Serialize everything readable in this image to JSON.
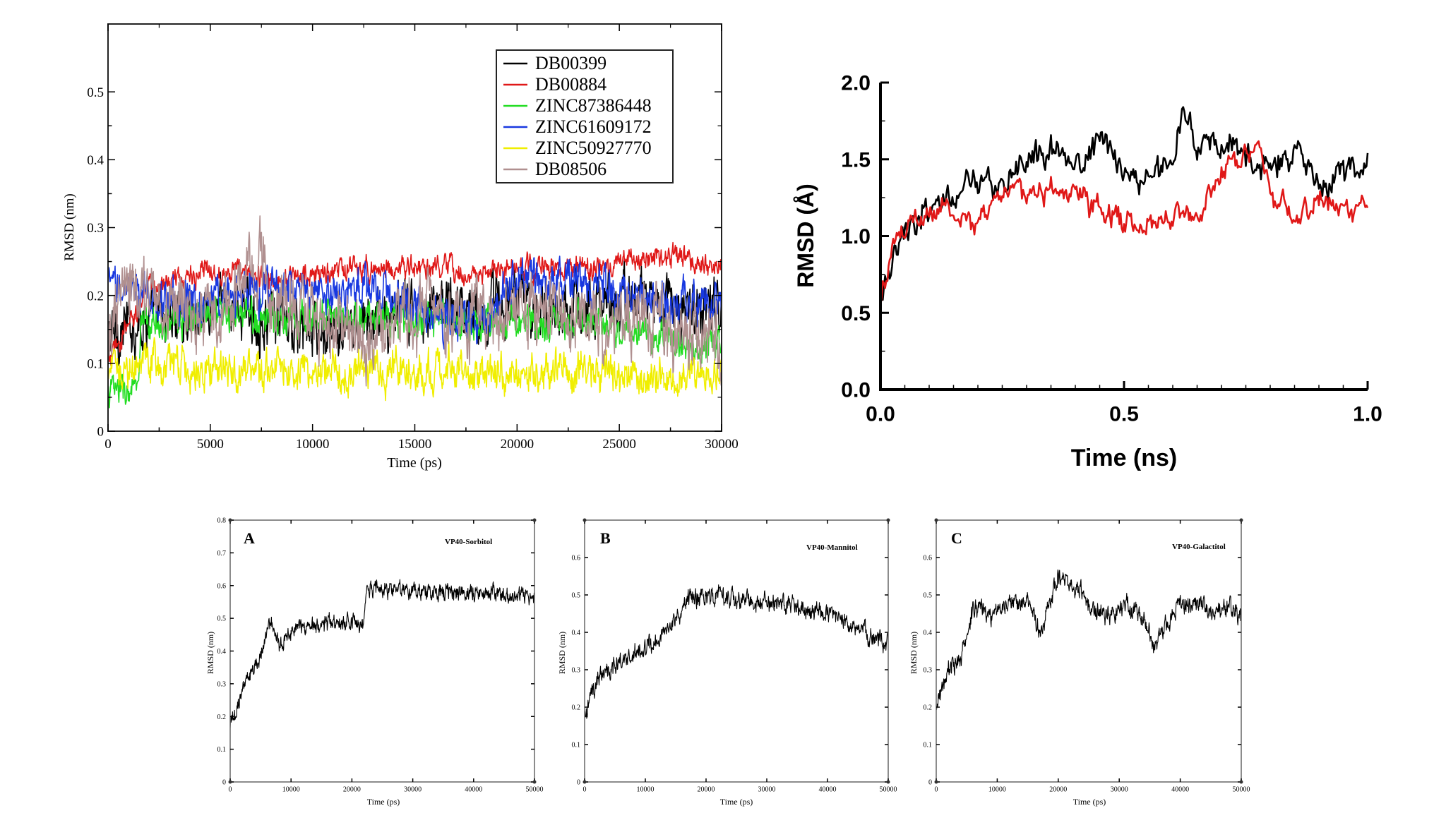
{
  "chart_data": [
    {
      "id": "p1",
      "type": "line",
      "title": "",
      "xlabel": "Time (ps)",
      "ylabel": "RMSD (nm)",
      "xlim": [
        0,
        30000
      ],
      "ylim": [
        0,
        0.6
      ],
      "xticks": [
        0,
        5000,
        10000,
        15000,
        20000,
        25000,
        30000
      ],
      "yticks": [
        0,
        0.1,
        0.2,
        0.3,
        0.4,
        0.5
      ],
      "xtick_labels": [
        "0",
        "5000",
        "10000",
        "15000",
        "20000",
        "25000",
        "30000"
      ],
      "ytick_labels": [
        "0",
        "0.1",
        "0.2",
        "0.3",
        "0.4",
        "0.5"
      ],
      "legend_position": "top-right",
      "series": [
        {
          "name": "DB00399",
          "color": "#000000",
          "x": [
            0,
            2000,
            4000,
            6000,
            8000,
            10000,
            12000,
            14000,
            16000,
            18000,
            20000,
            22000,
            24000,
            26000,
            28000,
            30000
          ],
          "values": [
            0.14,
            0.17,
            0.17,
            0.19,
            0.16,
            0.14,
            0.15,
            0.17,
            0.19,
            0.18,
            0.19,
            0.19,
            0.18,
            0.2,
            0.18,
            0.18
          ],
          "noise": 0.03
        },
        {
          "name": "DB00884",
          "color": "#e01818",
          "x": [
            0,
            2000,
            4000,
            6000,
            8000,
            10000,
            12000,
            14000,
            16000,
            18000,
            20000,
            22000,
            24000,
            26000,
            28000,
            30000
          ],
          "values": [
            0.1,
            0.21,
            0.23,
            0.24,
            0.22,
            0.23,
            0.24,
            0.24,
            0.24,
            0.23,
            0.24,
            0.24,
            0.24,
            0.25,
            0.26,
            0.24
          ],
          "noise": 0.012
        },
        {
          "name": "ZINC87386448",
          "color": "#22dd22",
          "x": [
            0,
            1500,
            1600,
            4000,
            8000,
            12000,
            16000,
            20000,
            24000,
            28000,
            30000
          ],
          "values": [
            0.06,
            0.06,
            0.15,
            0.17,
            0.17,
            0.17,
            0.16,
            0.16,
            0.16,
            0.13,
            0.12
          ],
          "noise": 0.018
        },
        {
          "name": "ZINC61609172",
          "color": "#1838e0",
          "x": [
            0,
            2000,
            4000,
            6000,
            8000,
            10000,
            12000,
            14000,
            16000,
            18000,
            20000,
            22000,
            24000,
            26000,
            28000,
            30000
          ],
          "values": [
            0.21,
            0.2,
            0.19,
            0.2,
            0.21,
            0.2,
            0.21,
            0.2,
            0.17,
            0.16,
            0.23,
            0.22,
            0.21,
            0.2,
            0.19,
            0.19
          ],
          "noise": 0.022
        },
        {
          "name": "ZINC50927770",
          "color": "#f0ee00",
          "x": [
            0,
            2000,
            4000,
            6000,
            8000,
            10000,
            12000,
            14000,
            16000,
            18000,
            20000,
            22000,
            24000,
            26000,
            28000,
            30000
          ],
          "values": [
            0.09,
            0.1,
            0.09,
            0.09,
            0.09,
            0.09,
            0.09,
            0.09,
            0.09,
            0.09,
            0.09,
            0.09,
            0.09,
            0.08,
            0.08,
            0.08
          ],
          "noise": 0.02
        },
        {
          "name": "DB08506",
          "color": "#b09090",
          "x": [
            0,
            1000,
            2000,
            4000,
            6000,
            7500,
            8000,
            10000,
            12000,
            14000,
            16000,
            18000,
            20000,
            22000,
            24000,
            26000,
            28000,
            30000
          ],
          "values": [
            0.13,
            0.22,
            0.19,
            0.17,
            0.18,
            0.27,
            0.2,
            0.17,
            0.14,
            0.16,
            0.18,
            0.17,
            0.18,
            0.17,
            0.16,
            0.17,
            0.14,
            0.13
          ],
          "noise": 0.035
        }
      ]
    },
    {
      "id": "p2",
      "type": "line",
      "title": "",
      "xlabel": "Time (ns)",
      "ylabel": "RMSD (Å)",
      "xlim": [
        0,
        1.0
      ],
      "ylim": [
        0,
        2.0
      ],
      "xticks": [
        0,
        0.5,
        1.0
      ],
      "yticks": [
        0,
        0.5,
        1.0,
        1.5,
        2.0
      ],
      "xtick_labels": [
        "0.0",
        "0.5",
        "1.0"
      ],
      "ytick_labels": [
        "0.0",
        "0.5",
        "1.0",
        "1.5",
        "2.0"
      ],
      "series": [
        {
          "name": "black",
          "color": "#000000",
          "x": [
            0,
            0.03,
            0.06,
            0.1,
            0.15,
            0.2,
            0.25,
            0.3,
            0.35,
            0.4,
            0.45,
            0.5,
            0.55,
            0.6,
            0.62,
            0.65,
            0.7,
            0.75,
            0.8,
            0.85,
            0.9,
            0.95,
            1.0
          ],
          "values": [
            0.65,
            0.85,
            1.05,
            1.2,
            1.25,
            1.35,
            1.3,
            1.45,
            1.6,
            1.45,
            1.65,
            1.4,
            1.35,
            1.5,
            1.8,
            1.6,
            1.6,
            1.5,
            1.45,
            1.55,
            1.35,
            1.4,
            1.45
          ],
          "noise": 0.07
        },
        {
          "name": "red",
          "color": "#e01818",
          "x": [
            0,
            0.03,
            0.06,
            0.1,
            0.15,
            0.2,
            0.25,
            0.3,
            0.35,
            0.4,
            0.45,
            0.5,
            0.55,
            0.6,
            0.65,
            0.7,
            0.75,
            0.78,
            0.8,
            0.85,
            0.9,
            0.95,
            1.0
          ],
          "values": [
            0.6,
            0.95,
            1.1,
            1.15,
            1.2,
            1.05,
            1.3,
            1.3,
            1.3,
            1.25,
            1.2,
            1.1,
            1.1,
            1.15,
            1.15,
            1.4,
            1.55,
            1.65,
            1.3,
            1.1,
            1.25,
            1.15,
            1.2
          ],
          "noise": 0.06
        }
      ]
    },
    {
      "id": "p3",
      "type": "line",
      "panel_label": "A",
      "annotation": "VP40-Sorbitol",
      "xlabel": "Time (ps)",
      "ylabel": "RMSD (nm)",
      "xlim": [
        0,
        50000
      ],
      "ylim": [
        0,
        0.8
      ],
      "xticks": [
        0,
        10000,
        20000,
        30000,
        40000,
        50000
      ],
      "yticks": [
        0,
        0.1,
        0.2,
        0.3,
        0.4,
        0.5,
        0.6,
        0.7,
        0.8
      ],
      "xtick_labels": [
        "0",
        "10000",
        "20000",
        "30000",
        "40000",
        "50000"
      ],
      "ytick_labels": [
        "0",
        "0.1",
        "0.2",
        "0.3",
        "0.4",
        "0.5",
        "0.6",
        "0.7",
        "0.8"
      ],
      "series": [
        {
          "name": "VP40-Sorbitol",
          "color": "#000000",
          "x": [
            0,
            1500,
            3000,
            5000,
            6500,
            8000,
            10000,
            12000,
            15000,
            18000,
            22000,
            22500,
            25000,
            30000,
            35000,
            40000,
            45000,
            50000
          ],
          "values": [
            0.17,
            0.25,
            0.33,
            0.38,
            0.49,
            0.42,
            0.46,
            0.48,
            0.47,
            0.49,
            0.49,
            0.59,
            0.59,
            0.58,
            0.58,
            0.58,
            0.57,
            0.56
          ],
          "noise": 0.018
        }
      ]
    },
    {
      "id": "p4",
      "type": "line",
      "panel_label": "B",
      "annotation": "VP40-Mannitol",
      "xlabel": "Time (ps)",
      "ylabel": "RMSD (nm)",
      "xlim": [
        0,
        50000
      ],
      "ylim": [
        0,
        0.7
      ],
      "xticks": [
        0,
        10000,
        20000,
        30000,
        40000,
        50000
      ],
      "yticks": [
        0,
        0.1,
        0.2,
        0.3,
        0.4,
        0.5,
        0.6
      ],
      "xtick_labels": [
        "0",
        "10000",
        "20000",
        "30000",
        "40000",
        "50000"
      ],
      "ytick_labels": [
        "0",
        "0.1",
        "0.2",
        "0.3",
        "0.4",
        "0.5",
        "0.6"
      ],
      "series": [
        {
          "name": "VP40-Mannitol",
          "color": "#000000",
          "x": [
            0,
            2000,
            5000,
            8000,
            11000,
            14000,
            17000,
            20000,
            25000,
            30000,
            35000,
            40000,
            45000,
            50000
          ],
          "values": [
            0.17,
            0.28,
            0.31,
            0.33,
            0.37,
            0.42,
            0.49,
            0.5,
            0.49,
            0.48,
            0.47,
            0.45,
            0.41,
            0.37
          ],
          "noise": 0.018
        }
      ]
    },
    {
      "id": "p5",
      "type": "line",
      "panel_label": "C",
      "annotation": "VP40-Galactitol",
      "xlabel": "Time (ps)",
      "ylabel": "RMSD (nm)",
      "xlim": [
        0,
        50000
      ],
      "ylim": [
        0,
        0.7
      ],
      "xticks": [
        0,
        10000,
        20000,
        30000,
        40000,
        50000
      ],
      "yticks": [
        0,
        0.1,
        0.2,
        0.3,
        0.4,
        0.5,
        0.6
      ],
      "xtick_labels": [
        "0",
        "10000",
        "20000",
        "30000",
        "40000",
        "50000"
      ],
      "ytick_labels": [
        "0",
        "0.1",
        "0.2",
        "0.3",
        "0.4",
        "0.5",
        "0.6"
      ],
      "series": [
        {
          "name": "VP40-Galactitol",
          "color": "#000000",
          "x": [
            0,
            2000,
            4000,
            6000,
            9000,
            12000,
            15000,
            17000,
            20000,
            22000,
            25000,
            28000,
            31000,
            34000,
            35500,
            38000,
            40000,
            43000,
            46000,
            49000,
            50000
          ],
          "values": [
            0.2,
            0.3,
            0.33,
            0.46,
            0.45,
            0.49,
            0.47,
            0.41,
            0.55,
            0.53,
            0.48,
            0.44,
            0.47,
            0.44,
            0.37,
            0.42,
            0.48,
            0.48,
            0.45,
            0.47,
            0.44
          ],
          "noise": 0.018
        }
      ]
    }
  ]
}
